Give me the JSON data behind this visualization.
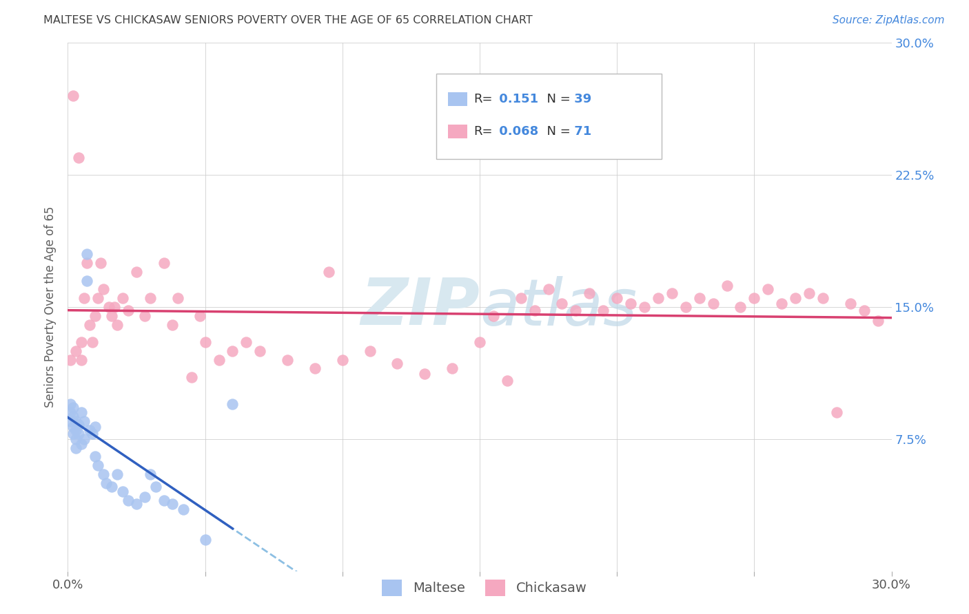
{
  "title": "MALTESE VS CHICKASAW SENIORS POVERTY OVER THE AGE OF 65 CORRELATION CHART",
  "source": "Source: ZipAtlas.com",
  "ylabel": "Seniors Poverty Over the Age of 65",
  "xlim": [
    0.0,
    0.3
  ],
  "ylim": [
    0.0,
    0.3
  ],
  "maltese_R": 0.151,
  "maltese_N": 39,
  "chickasaw_R": 0.068,
  "chickasaw_N": 71,
  "maltese_color": "#a8c4f0",
  "chickasaw_color": "#f5a8c0",
  "maltese_line_color": "#3060c0",
  "chickasaw_line_color": "#d84070",
  "dashed_line_color": "#80b8e0",
  "background_color": "#ffffff",
  "grid_color": "#cccccc",
  "title_color": "#404040",
  "ylabel_color": "#606060",
  "right_tick_color": "#4488dd",
  "watermark_color": "#d8e8f0",
  "maltese_x": [
    0.001,
    0.001,
    0.001,
    0.002,
    0.002,
    0.002,
    0.002,
    0.003,
    0.003,
    0.003,
    0.003,
    0.004,
    0.004,
    0.005,
    0.005,
    0.006,
    0.006,
    0.007,
    0.007,
    0.008,
    0.009,
    0.01,
    0.01,
    0.011,
    0.013,
    0.014,
    0.016,
    0.018,
    0.02,
    0.022,
    0.025,
    0.028,
    0.03,
    0.032,
    0.035,
    0.038,
    0.042,
    0.05,
    0.06
  ],
  "maltese_y": [
    0.095,
    0.09,
    0.085,
    0.093,
    0.088,
    0.082,
    0.078,
    0.085,
    0.08,
    0.075,
    0.07,
    0.083,
    0.078,
    0.09,
    0.072,
    0.085,
    0.075,
    0.18,
    0.165,
    0.08,
    0.078,
    0.082,
    0.065,
    0.06,
    0.055,
    0.05,
    0.048,
    0.055,
    0.045,
    0.04,
    0.038,
    0.042,
    0.055,
    0.048,
    0.04,
    0.038,
    0.035,
    0.018,
    0.095
  ],
  "chickasaw_x": [
    0.001,
    0.002,
    0.003,
    0.004,
    0.005,
    0.005,
    0.006,
    0.007,
    0.008,
    0.009,
    0.01,
    0.011,
    0.012,
    0.013,
    0.015,
    0.016,
    0.017,
    0.018,
    0.02,
    0.022,
    0.025,
    0.028,
    0.03,
    0.035,
    0.038,
    0.04,
    0.045,
    0.048,
    0.05,
    0.055,
    0.06,
    0.065,
    0.07,
    0.08,
    0.09,
    0.095,
    0.1,
    0.11,
    0.12,
    0.13,
    0.14,
    0.15,
    0.155,
    0.16,
    0.165,
    0.17,
    0.175,
    0.18,
    0.185,
    0.19,
    0.195,
    0.2,
    0.205,
    0.21,
    0.215,
    0.22,
    0.225,
    0.23,
    0.235,
    0.24,
    0.245,
    0.25,
    0.255,
    0.26,
    0.265,
    0.27,
    0.275,
    0.28,
    0.285,
    0.29,
    0.295
  ],
  "chickasaw_y": [
    0.12,
    0.27,
    0.125,
    0.235,
    0.13,
    0.12,
    0.155,
    0.175,
    0.14,
    0.13,
    0.145,
    0.155,
    0.175,
    0.16,
    0.15,
    0.145,
    0.15,
    0.14,
    0.155,
    0.148,
    0.17,
    0.145,
    0.155,
    0.175,
    0.14,
    0.155,
    0.11,
    0.145,
    0.13,
    0.12,
    0.125,
    0.13,
    0.125,
    0.12,
    0.115,
    0.17,
    0.12,
    0.125,
    0.118,
    0.112,
    0.115,
    0.13,
    0.145,
    0.108,
    0.155,
    0.148,
    0.16,
    0.152,
    0.148,
    0.158,
    0.148,
    0.155,
    0.152,
    0.15,
    0.155,
    0.158,
    0.15,
    0.155,
    0.152,
    0.162,
    0.15,
    0.155,
    0.16,
    0.152,
    0.155,
    0.158,
    0.155,
    0.09,
    0.152,
    0.148,
    0.142
  ]
}
